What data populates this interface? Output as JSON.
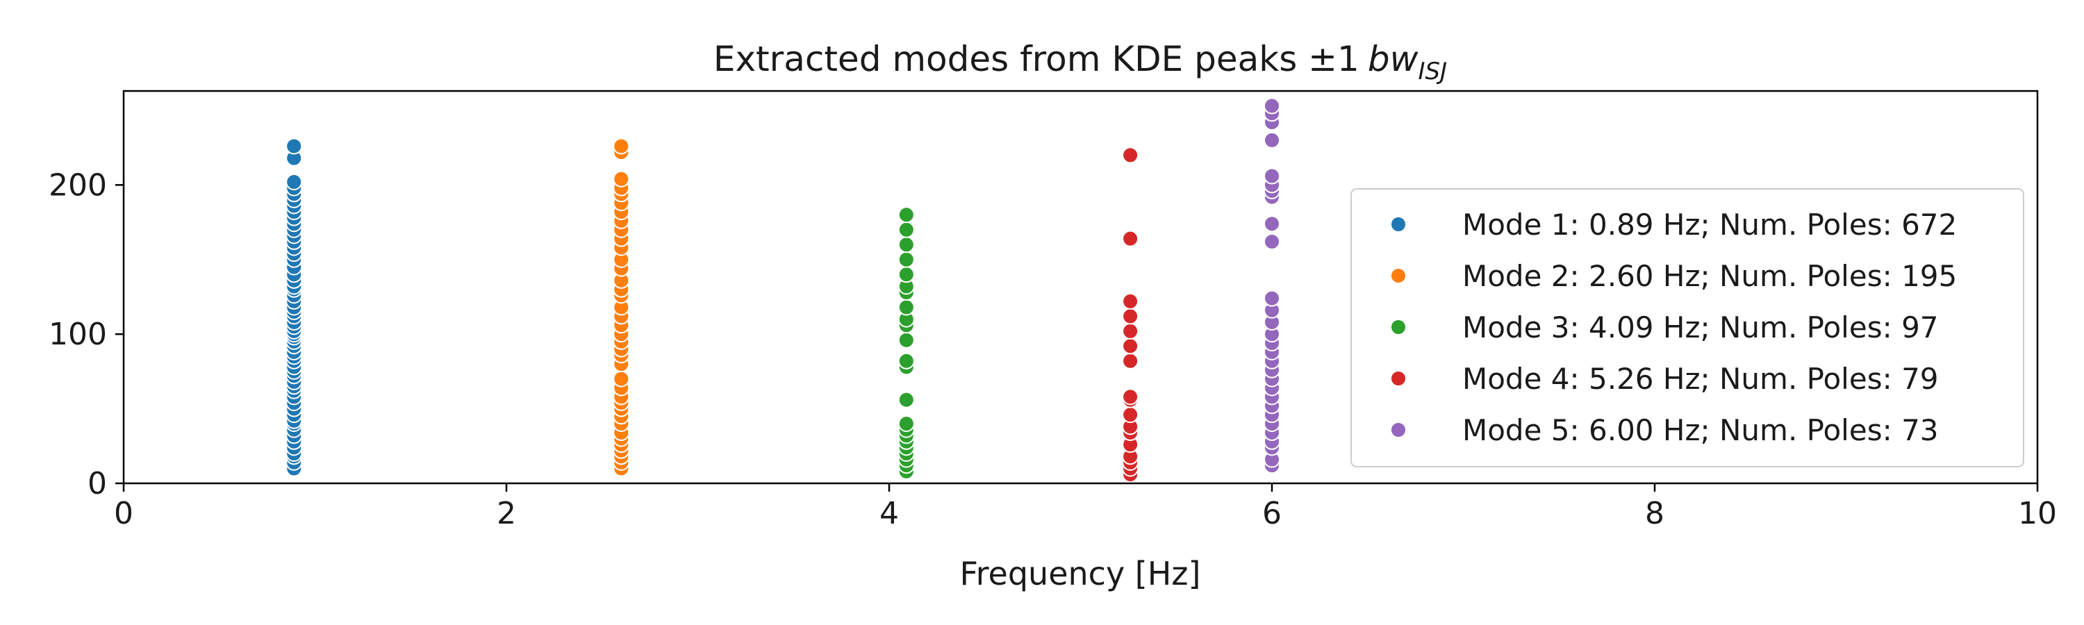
{
  "chart_data": {
    "type": "scatter",
    "title": "Extracted modes from KDE peaks ±1",
    "title_math": {
      "base": "bw",
      "subscript": "ISJ"
    },
    "xlabel": "Frequency [Hz]",
    "ylabel": "",
    "xlim": [
      0,
      10
    ],
    "ylim": [
      0,
      263
    ],
    "xticks": [
      0,
      2,
      4,
      6,
      8,
      10
    ],
    "yticks": [
      0,
      100,
      200
    ],
    "grid": false,
    "legend_position": "right",
    "series": [
      {
        "name": "Mode 1: 0.89 Hz; Num. Poles: 672",
        "color": "#1f77b4",
        "x": 0.89,
        "y": [
          10,
          14,
          18,
          20,
          24,
          28,
          32,
          36,
          40,
          42,
          46,
          50,
          54,
          58,
          62,
          65,
          68,
          72,
          75,
          78,
          82,
          85,
          88,
          92,
          95,
          98,
          100,
          102,
          105,
          108,
          112,
          115,
          118,
          122,
          126,
          130,
          132,
          136,
          140,
          145,
          150,
          154,
          158,
          162,
          166,
          170,
          174,
          178,
          182,
          186,
          190,
          194,
          198,
          202,
          218,
          226
        ]
      },
      {
        "name": "Mode 2: 2.60 Hz; Num. Poles: 195",
        "color": "#ff7f0e",
        "x": 2.6,
        "y": [
          10,
          14,
          18,
          22,
          26,
          30,
          34,
          40,
          45,
          50,
          54,
          58,
          64,
          70,
          80,
          86,
          90,
          95,
          100,
          106,
          112,
          118,
          126,
          130,
          136,
          144,
          150,
          158,
          164,
          170,
          176,
          182,
          188,
          194,
          198,
          204,
          222,
          226
        ]
      },
      {
        "name": "Mode 3: 4.09 Hz; Num. Poles: 97",
        "color": "#2ca02c",
        "x": 4.09,
        "y": [
          8,
          12,
          16,
          20,
          24,
          28,
          32,
          36,
          40,
          56,
          78,
          82,
          96,
          106,
          110,
          118,
          128,
          132,
          140,
          150,
          160,
          170,
          180
        ]
      },
      {
        "name": "Mode 4: 5.26 Hz; Num. Poles: 79",
        "color": "#d62728",
        "x": 5.26,
        "y": [
          6,
          10,
          14,
          18,
          26,
          34,
          38,
          46,
          56,
          58,
          82,
          92,
          102,
          112,
          122,
          164,
          220
        ]
      },
      {
        "name": "Mode 5: 6.00 Hz; Num. Poles: 73",
        "color": "#9467bd",
        "x": 6.0,
        "y": [
          12,
          16,
          24,
          28,
          34,
          40,
          46,
          52,
          58,
          64,
          70,
          76,
          82,
          88,
          94,
          100,
          108,
          116,
          124,
          162,
          174,
          192,
          196,
          200,
          206,
          230,
          242,
          248,
          253
        ]
      }
    ]
  }
}
